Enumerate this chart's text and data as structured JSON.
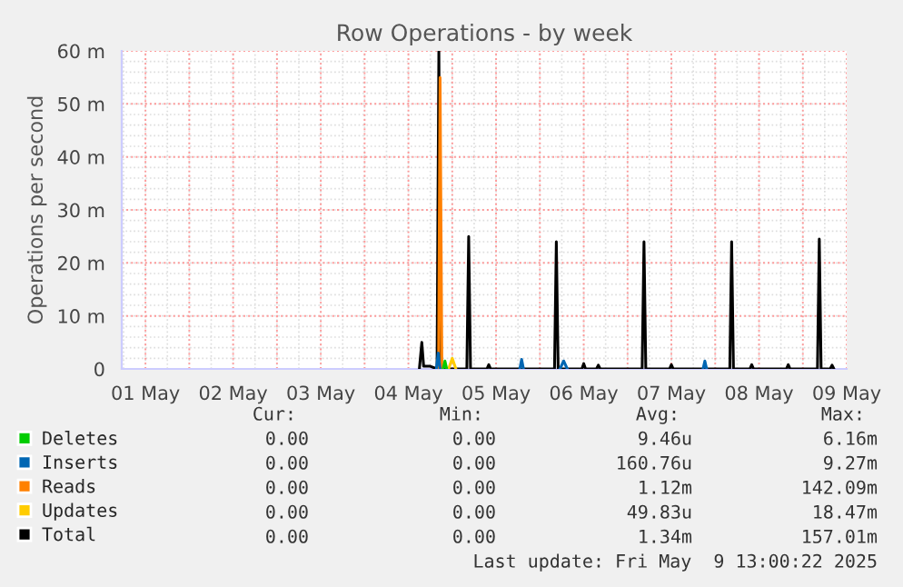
{
  "chart_data": {
    "type": "line",
    "title": "Row Operations - by week",
    "ylabel": "Operations per second",
    "series": [
      {
        "name": "Deletes",
        "color": "#00cc00",
        "x": [
          "2025-05-04T21:30",
          "2025-05-04T22:00",
          "2025-05-04T22:30"
        ],
        "values": [
          0,
          1.5,
          0
        ]
      },
      {
        "name": "Inserts",
        "color": "#0066b3",
        "x": [
          "2025-05-04T19:40",
          "2025-05-04T20:10",
          "2025-05-04T20:40",
          "2025-05-05T12:00",
          "2025-05-05T18:30",
          "2025-05-05T19:00",
          "2025-05-05T19:30",
          "2025-05-06T00:00",
          "2025-05-06T05:30",
          "2025-05-06T06:30",
          "2025-05-06T07:30",
          "2025-05-07T12:00",
          "2025-05-07T20:40",
          "2025-05-07T21:10",
          "2025-05-07T21:40"
        ],
        "values": [
          0,
          3,
          0,
          null,
          0,
          1.8,
          0,
          null,
          0,
          1.5,
          0,
          null,
          0,
          1.5,
          0
        ]
      },
      {
        "name": "Reads",
        "color": "#ff8000",
        "x": [
          "2025-05-04T20:15",
          "2025-05-04T20:40",
          "2025-05-04T21:10"
        ],
        "values": [
          0,
          55,
          0
        ]
      },
      {
        "name": "Updates",
        "color": "#ffcc00",
        "x": [
          "2025-05-04T23:00",
          "2025-05-05T00:00",
          "2025-05-05T01:00"
        ],
        "values": [
          0,
          2,
          0
        ]
      },
      {
        "name": "Total",
        "color": "#000000",
        "x": [
          "2025-05-04T15:00",
          "2025-05-04T15:40",
          "2025-05-04T16:10",
          "2025-05-04T17:00",
          "2025-05-04T18:00",
          "2025-05-04T19:50",
          "2025-05-04T20:20",
          "2025-05-04T20:50",
          "2025-05-05T04:00",
          "2025-05-05T04:30",
          "2025-05-05T05:00",
          "2025-05-05T09:30",
          "2025-05-05T10:00",
          "2025-05-05T10:30",
          "2025-05-06T04:00",
          "2025-05-06T04:30",
          "2025-05-06T05:00",
          "2025-05-06T11:30",
          "2025-05-06T12:00",
          "2025-05-06T12:30",
          "2025-05-06T15:30",
          "2025-05-06T16:00",
          "2025-05-06T16:30",
          "2025-05-07T04:00",
          "2025-05-07T04:30",
          "2025-05-07T05:00",
          "2025-05-07T11:30",
          "2025-05-07T12:00",
          "2025-05-07T12:30",
          "2025-05-08T04:00",
          "2025-05-08T04:30",
          "2025-05-08T05:00",
          "2025-05-08T09:30",
          "2025-05-08T10:00",
          "2025-05-08T10:30",
          "2025-05-08T19:30",
          "2025-05-08T20:00",
          "2025-05-08T20:30",
          "2025-05-09T04:00",
          "2025-05-09T04:30",
          "2025-05-09T05:00",
          "2025-05-09T07:30",
          "2025-05-09T08:00",
          "2025-05-09T08:30"
        ],
        "values": [
          0,
          5,
          0.5,
          0.5,
          0.5,
          0,
          60,
          0,
          0,
          25,
          0,
          0,
          0.8,
          0,
          0,
          24,
          0,
          0,
          1,
          0,
          0,
          0.7,
          0,
          0,
          24,
          0,
          0,
          0.8,
          0,
          0,
          24,
          0,
          0,
          0.8,
          0,
          0,
          0.8,
          0,
          0,
          24.5,
          0,
          0,
          0.7,
          0
        ]
      }
    ],
    "xlim": [
      "2025-05-01T05:30",
      "2025-05-09T12:00"
    ],
    "xticks": [
      {
        "value": "2025-05-01T12:00",
        "label": "01 May"
      },
      {
        "value": "2025-05-02T00:00",
        "label": null
      },
      {
        "value": "2025-05-02T12:00",
        "label": "02 May"
      },
      {
        "value": "2025-05-03T00:00",
        "label": null
      },
      {
        "value": "2025-05-03T12:00",
        "label": "03 May"
      },
      {
        "value": "2025-05-04T00:00",
        "label": null
      },
      {
        "value": "2025-05-04T12:00",
        "label": "04 May"
      },
      {
        "value": "2025-05-05T00:00",
        "label": null
      },
      {
        "value": "2025-05-05T12:00",
        "label": "05 May"
      },
      {
        "value": "2025-05-06T00:00",
        "label": null
      },
      {
        "value": "2025-05-06T12:00",
        "label": "06 May"
      },
      {
        "value": "2025-05-07T00:00",
        "label": null
      },
      {
        "value": "2025-05-07T12:00",
        "label": "07 May"
      },
      {
        "value": "2025-05-08T00:00",
        "label": null
      },
      {
        "value": "2025-05-08T12:00",
        "label": "08 May"
      },
      {
        "value": "2025-05-09T00:00",
        "label": null
      },
      {
        "value": "2025-05-09T12:00",
        "label": "09 May"
      }
    ],
    "ylim": [
      0,
      60
    ],
    "yticks": [
      0,
      {
        "value": 10,
        "label": "10 m"
      },
      {
        "value": 20,
        "label": "20 m"
      },
      {
        "value": 30,
        "label": "30 m"
      },
      {
        "value": 40,
        "label": "40 m"
      },
      {
        "value": 50,
        "label": "50 m"
      },
      {
        "value": 60,
        "label": "60 m"
      }
    ],
    "grid": true,
    "legend": "bottom",
    "line_style": "solid",
    "marker": "none",
    "annotations": [
      "Cur:",
      "Min:",
      "Avg:",
      "Max:",
      "0.00",
      "0.00",
      "9.46u",
      "6.16m",
      "0.00",
      "0.00",
      "160.76u",
      "9.27m",
      "0.00",
      "0.00",
      "1.12m",
      "142.09m",
      "0.00",
      "0.00",
      "49.83u",
      "18.47m",
      "0.00",
      "0.00",
      "1.34m",
      "157.01m",
      "Last update: Fri May  9 13:00:22 2025"
    ]
  }
}
